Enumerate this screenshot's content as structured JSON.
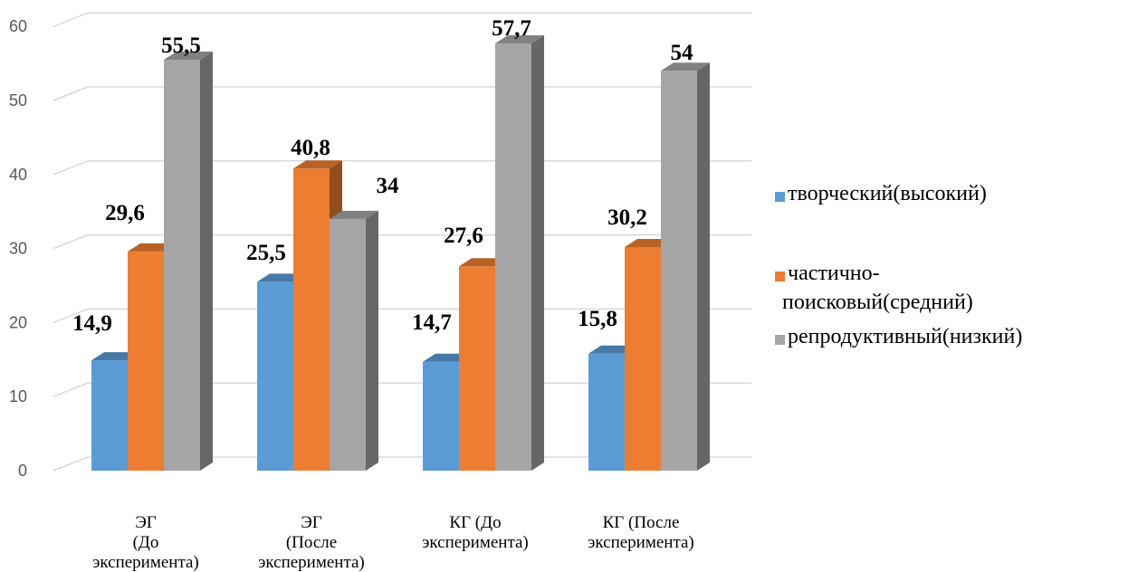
{
  "chart_data": {
    "type": "bar",
    "categories": [
      [
        "ЭГ",
        "(До",
        "эксперимента)"
      ],
      [
        "ЭГ",
        "(После",
        "эксперимента)"
      ],
      [
        "КГ (До",
        "эксперимента)"
      ],
      [
        "КГ (После",
        "эксперимента)"
      ]
    ],
    "series": [
      {
        "name": "творческий(высокий)",
        "values": [
          14.9,
          25.5,
          14.7,
          15.8
        ],
        "labels": [
          "14,9",
          "25,5",
          "14,7",
          "15,8"
        ],
        "color": "#5B9BD5"
      },
      {
        "name": "частично-поисковый(средний)",
        "values": [
          29.6,
          40.8,
          27.6,
          30.2
        ],
        "labels": [
          "29,6",
          "40,8",
          "27,6",
          "30,2"
        ],
        "color": "#ED7D31"
      },
      {
        "name": "репродуктивный(низкий)",
        "values": [
          55.5,
          34,
          57.7,
          54
        ],
        "labels": [
          "55,5",
          "34",
          "57,7",
          "54"
        ],
        "color": "#A5A5A5"
      }
    ],
    "legend_lines": [
      [
        "творческий(высокий)"
      ],
      [
        "частично-",
        "поисковый(средний)"
      ],
      [
        "репродуктивный(низкий)"
      ]
    ],
    "yticks": [
      "0",
      "10",
      "20",
      "30",
      "40",
      "50",
      "60"
    ],
    "ylim": [
      0,
      60
    ],
    "grid": true,
    "legend_position": "right"
  }
}
